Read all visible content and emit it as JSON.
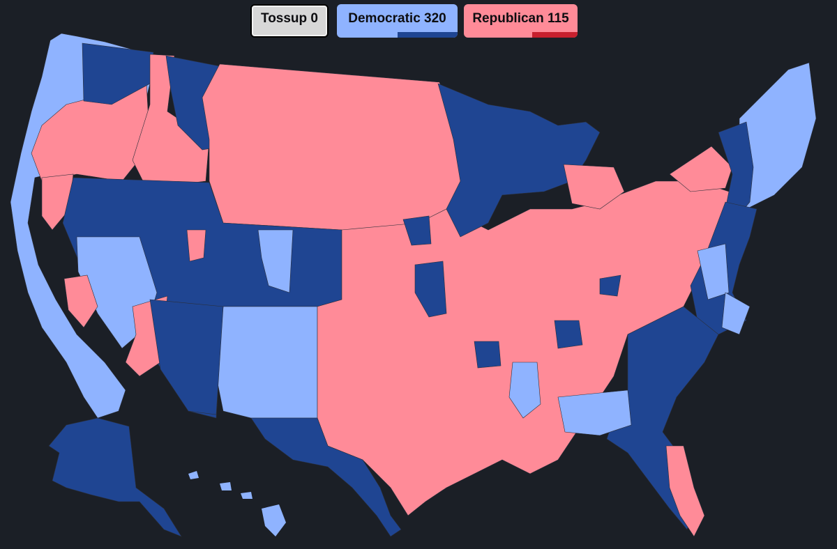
{
  "legend": {
    "tossup": {
      "label": "Tossup 0",
      "color": "#d7d7d7"
    },
    "democratic": {
      "label": "Democratic 320",
      "color": "#8fb3ff",
      "strong_color": "#1f4592",
      "strong_fraction": 0.5
    },
    "republican": {
      "label": "Republican 115",
      "color": "#ff8b98",
      "strong_color": "#c7202e",
      "strong_fraction": 0.4
    }
  },
  "map": {
    "background": "#1b1f26",
    "colors": {
      "safe_dem": "#1f4592",
      "lean_dem": "#8fb3ff",
      "lean_rep": "#ff8b98",
      "border": "#2b2f3a"
    }
  }
}
